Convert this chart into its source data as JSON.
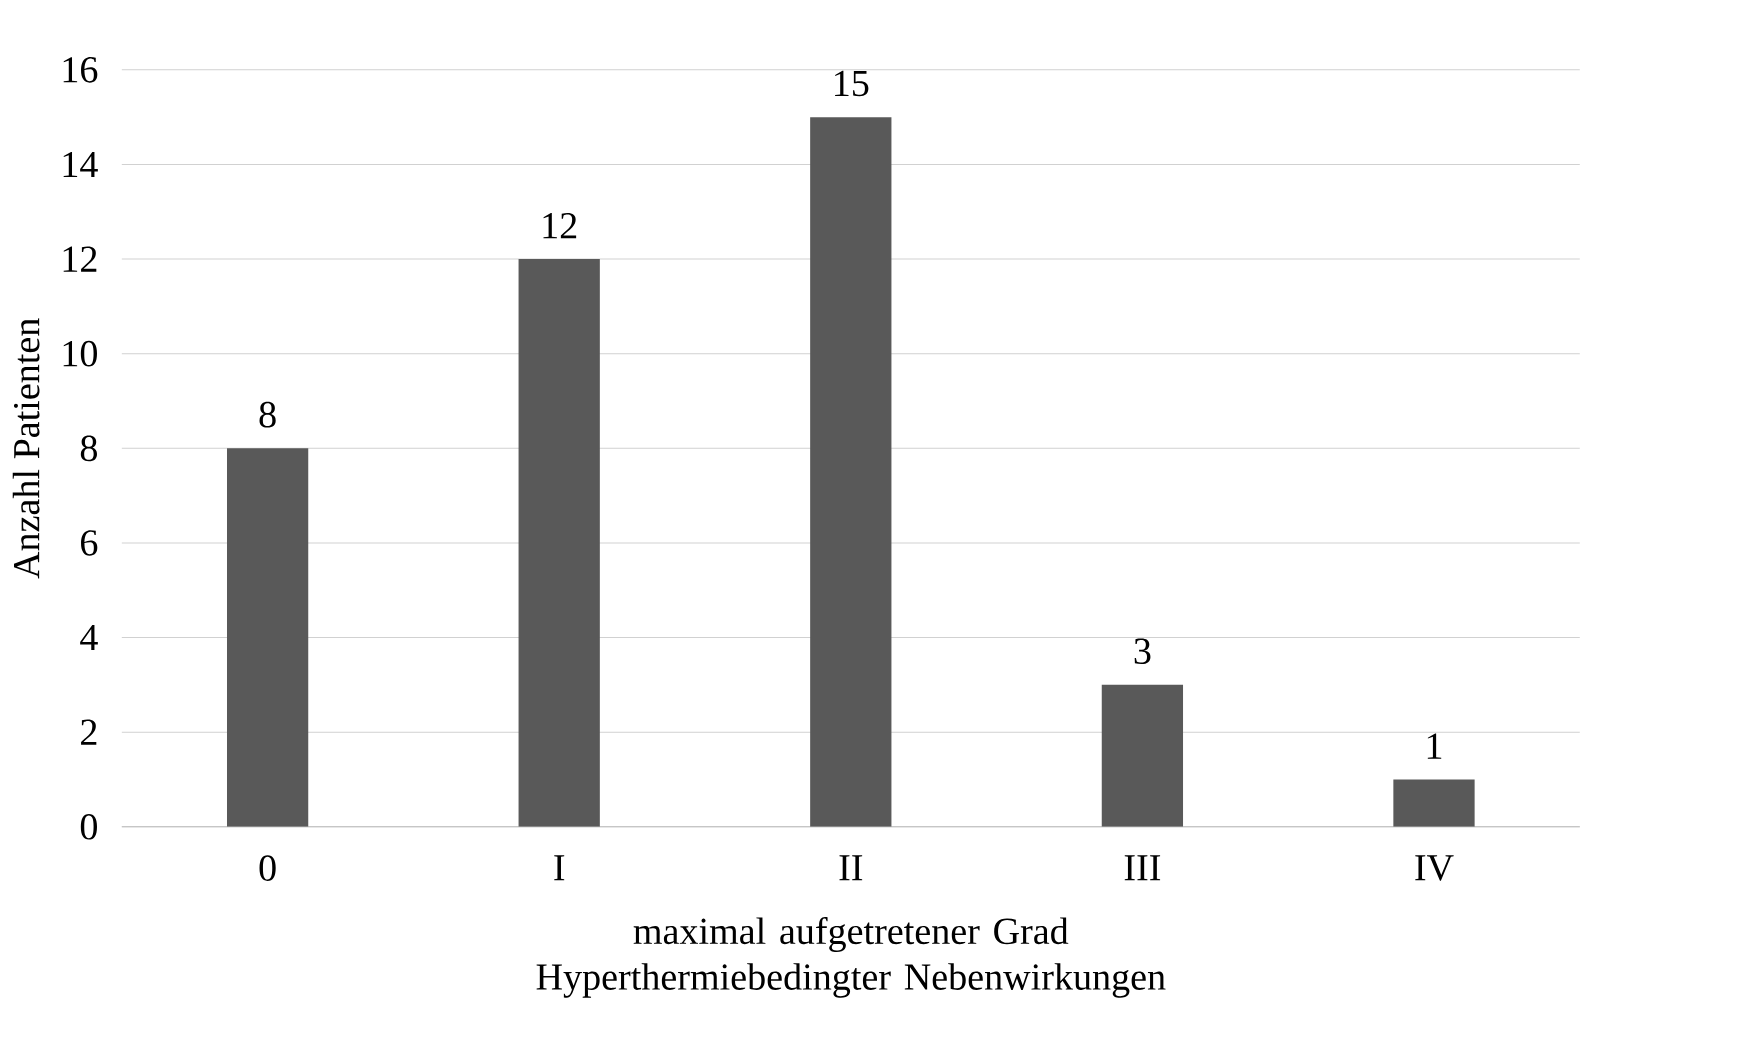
{
  "chart_data": {
    "type": "bar",
    "xlabel": "maximal aufgetretener Grad Hyperthermiebedingter Nebenwirkungen",
    "ylabel": "Anzahl Patienten",
    "categories": [
      "0",
      "I",
      "II",
      "III",
      "IV"
    ],
    "values": [
      8,
      12,
      15,
      3,
      1
    ],
    "color": "#595959",
    "ylim": [
      0,
      16
    ],
    "yticks": [
      0,
      2,
      4,
      6,
      8,
      10,
      12,
      14,
      16
    ],
    "grid": "y",
    "data_labels": true
  }
}
